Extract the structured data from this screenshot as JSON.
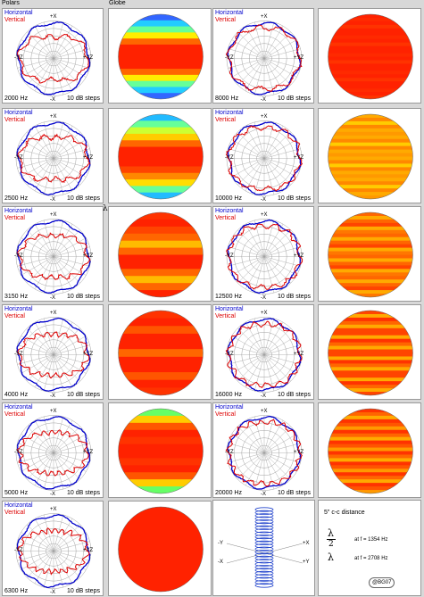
{
  "headers": {
    "polars": "Polars",
    "globe": "Globe"
  },
  "legend": {
    "horizontal": "Horizontal",
    "vertical": "Vertical",
    "steps": "10 dB steps"
  },
  "axis_labels": {
    "plus_x": "+X",
    "minus_x": "-X",
    "plus_yz": "+YZ",
    "minus_yz": "-YZ"
  },
  "colors": {
    "horizontal": "#0000cc",
    "vertical": "#dd0000",
    "grid": "#a0a0a0",
    "globe_red": "#ff2200",
    "globe_orange": "#ff8800",
    "globe_yellow": "#ffee00",
    "globe_green": "#00cc66",
    "globe_blue": "#2244ff"
  },
  "left_panels": [
    {
      "freq": "2000 Hz"
    },
    {
      "freq": "2500 Hz"
    },
    {
      "freq": "3150 Hz"
    },
    {
      "freq": "4000 Hz"
    },
    {
      "freq": "5000 Hz"
    },
    {
      "freq": "6300 Hz"
    }
  ],
  "right_panels": [
    {
      "freq": "8000 Hz"
    },
    {
      "freq": "10000 Hz"
    },
    {
      "freq": "12500 Hz"
    },
    {
      "freq": "16000 Hz"
    },
    {
      "freq": "20000 Hz"
    }
  ],
  "side_symbol": "λ",
  "array_info": {
    "spacing": "5\" c-c distance",
    "half_lambda": "λ",
    "half_denominator": "2",
    "half_freq": "at f = 1354 Hz",
    "full_lambda": "λ",
    "full_freq": "at f = 2708 Hz",
    "badge": "@BG07",
    "diagram_labels": {
      "plus_x": "+X",
      "minus_x": "-X",
      "plus_y": "+Y",
      "minus_y": "-Y"
    }
  }
}
